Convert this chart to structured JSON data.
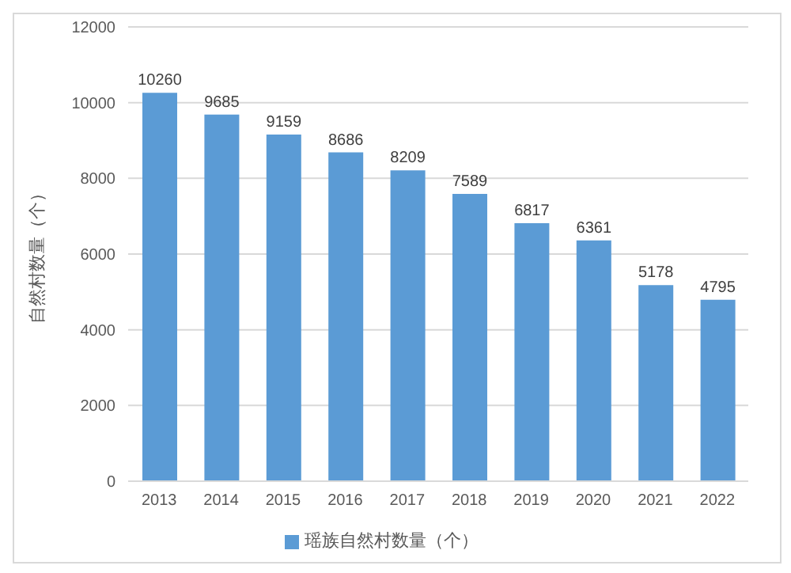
{
  "chart_data": {
    "type": "bar",
    "ylabel": "自然村数量（个）",
    "categories": [
      "2013",
      "2014",
      "2015",
      "2016",
      "2017",
      "2018",
      "2019",
      "2020",
      "2021",
      "2022"
    ],
    "series": [
      {
        "name": "瑶族自然村数量（个）",
        "color": "#5b9bd5",
        "values": [
          10260,
          9685,
          9159,
          8686,
          8209,
          7589,
          6817,
          6361,
          5178,
          4795
        ]
      }
    ],
    "ylim": [
      0,
      12000
    ],
    "yticks": [
      0,
      2000,
      4000,
      6000,
      8000,
      10000,
      12000
    ],
    "grid": "y",
    "legend": "bottom",
    "data_labels": true
  }
}
